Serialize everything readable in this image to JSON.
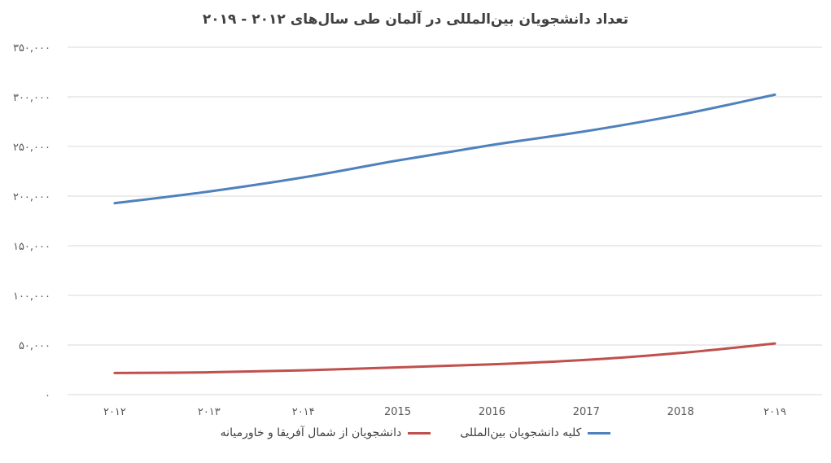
{
  "chart_data": {
    "type": "line",
    "title": "تعداد دانشجویان بین‌المللی در آلمان طی سال‌های ۲۰۱۲ - ۲۰۱۹",
    "categories": [
      "۲۰۱۲",
      "۲۰۱۳",
      "۲۰۱۴",
      "2015",
      "2016",
      "2017",
      "2018",
      "۲۰۱۹"
    ],
    "series": [
      {
        "name": "کلیه دانشجویان بین‌المللی",
        "color": "#4f81bd",
        "values": [
          192853,
          204644,
          218848,
          235858,
          251542,
          265484,
          282002,
          302157
        ]
      },
      {
        "name": "دانشجویان از شمال آفریقا و خاورمیانه",
        "color": "#c0504d",
        "values": [
          21800,
          22500,
          24500,
          27500,
          30500,
          35000,
          42000,
          51500
        ]
      }
    ],
    "ylim": [
      0,
      350000
    ],
    "yticks": [
      0,
      50000,
      100000,
      150000,
      200000,
      250000,
      300000,
      350000
    ],
    "ytick_labels": [
      "۰",
      "۵۰,۰۰۰",
      "۱۰۰,۰۰۰",
      "۱۵۰,۰۰۰",
      "۲۰۰,۰۰۰",
      "۲۵۰,۰۰۰",
      "۳۰۰,۰۰۰",
      "۳۵۰,۰۰۰"
    ],
    "grid": "horizontal",
    "legend_position": "bottom"
  }
}
